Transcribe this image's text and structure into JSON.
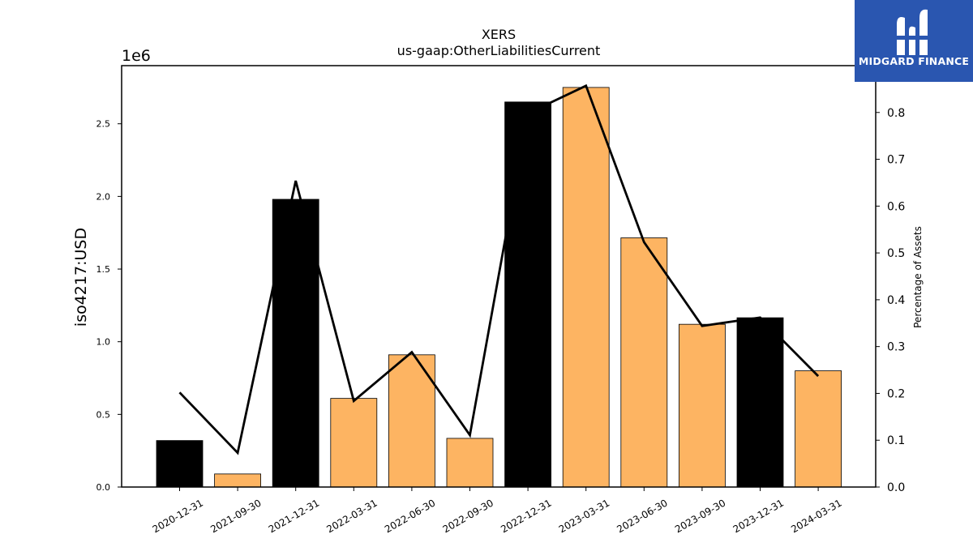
{
  "chart_data": {
    "type": "bar",
    "title": "XERS",
    "subtitle": "us-gaap:OtherLiabilitiesCurrent",
    "ylabel": "iso4217:USD",
    "y_offset_label": "1e6",
    "y2label": "Percentage of Assets",
    "categories": [
      "2020-12-31",
      "2021-09-30",
      "2021-12-31",
      "2022-03-31",
      "2022-06-30",
      "2022-09-30",
      "2022-12-31",
      "2023-03-31",
      "2023-06-30",
      "2023-09-30",
      "2023-12-31",
      "2024-03-31"
    ],
    "values": [
      320000,
      90000,
      1980000,
      610000,
      910000,
      335000,
      2650000,
      2750000,
      1715000,
      1120000,
      1165000,
      800000
    ],
    "bar_colors": [
      "#000000",
      "#fdb462",
      "#000000",
      "#fdb462",
      "#fdb462",
      "#fdb462",
      "#000000",
      "#fdb462",
      "#fdb462",
      "#fdb462",
      "#000000",
      "#fdb462"
    ],
    "line_series": {
      "name": "",
      "values": [
        0.202,
        0.073,
        0.654,
        0.184,
        0.288,
        0.111,
        0.798,
        0.857,
        0.523,
        0.344,
        0.362,
        0.237
      ],
      "color": "#000000"
    },
    "ylim": [
      0,
      2900000
    ],
    "y_ticks": [
      0,
      500000,
      1000000,
      1500000,
      2000000,
      2500000
    ],
    "y_tick_labels": [
      "0.0",
      "0.5",
      "1.0",
      "1.5",
      "2.0",
      "2.5"
    ],
    "y2lim": [
      0,
      0.9
    ],
    "y2_ticks": [
      0,
      0.1,
      0.2,
      0.3,
      0.4,
      0.5,
      0.6,
      0.7,
      0.8
    ],
    "y2_tick_labels": [
      "0.0",
      "0.1",
      "0.2",
      "0.3",
      "0.4",
      "0.5",
      "0.6",
      "0.7",
      "0.8"
    ],
    "grid": false,
    "legend": "none"
  },
  "logo": {
    "text": "MIDGARD FINANCE",
    "background": "#2a56b0"
  }
}
